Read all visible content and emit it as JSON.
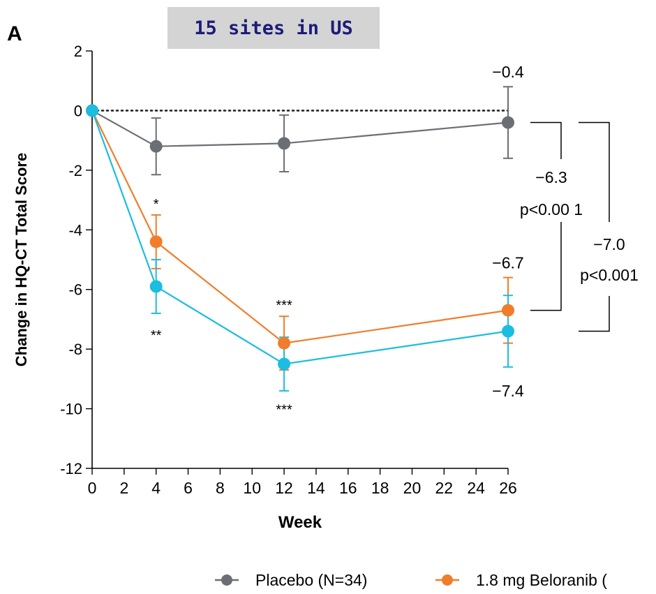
{
  "banner": "15 sites in US",
  "panel_label": "A",
  "chart_data": {
    "type": "line",
    "xlabel": "Week",
    "ylabel": "Change in HQ-CT Total Score",
    "xlim": [
      0,
      26
    ],
    "ylim": [
      -12,
      2
    ],
    "x_ticks": [
      "0",
      "2",
      "4",
      "6",
      "8",
      "10",
      "12",
      "14",
      "16",
      "18",
      "20",
      "22",
      "24",
      "26"
    ],
    "y_ticks": [
      "2",
      "0",
      "-2",
      "-4",
      "-6",
      "-8",
      "-10",
      "-12"
    ],
    "reference_line": 0,
    "series": [
      {
        "name": "Placebo (N=34)",
        "color": "#6c6e75",
        "x": [
          0,
          4,
          12,
          26
        ],
        "y": [
          0,
          -1.2,
          -1.1,
          -0.4
        ],
        "err_low": [
          0,
          0.95,
          0.95,
          1.2
        ],
        "err_high": [
          0,
          0.95,
          0.95,
          1.2
        ],
        "in_legend": true
      },
      {
        "name": "1.8 mg Beloranib (",
        "color": "#f07d2a",
        "x": [
          0,
          4,
          12,
          26
        ],
        "y": [
          0,
          -4.4,
          -7.8,
          -6.7
        ],
        "err_low": [
          0,
          0.9,
          0.9,
          1.1
        ],
        "err_high": [
          0,
          0.9,
          0.9,
          1.1
        ],
        "in_legend": true
      },
      {
        "name": "",
        "color": "#1bbde0",
        "x": [
          0,
          4,
          12,
          26
        ],
        "y": [
          0,
          -5.9,
          -8.5,
          -7.4
        ],
        "err_low": [
          0,
          0.9,
          0.9,
          1.2
        ],
        "err_high": [
          0,
          0.9,
          0.9,
          1.2
        ],
        "in_legend": false
      }
    ],
    "annotations": [
      {
        "text": "−0.4",
        "x": 26,
        "y": 1.3
      },
      {
        "text": "*",
        "x": 4,
        "y": -3.1
      },
      {
        "text": "**",
        "x": 4,
        "y": -7.5
      },
      {
        "text": "***",
        "x": 12,
        "y": -6.5
      },
      {
        "text": "***",
        "x": 12,
        "y": -10.0
      },
      {
        "text": "−6.7",
        "x": 26,
        "y": -5.1
      },
      {
        "text": "−7.4",
        "x": 26,
        "y": -9.4
      }
    ],
    "comparisons": [
      {
        "diff": "−6.3",
        "p": "p<0.00 1",
        "from_y": -0.4,
        "to_y": -6.7
      },
      {
        "diff": "−7.0",
        "p": "p<0.001",
        "from_y": -0.4,
        "to_y": -7.4
      }
    ]
  }
}
